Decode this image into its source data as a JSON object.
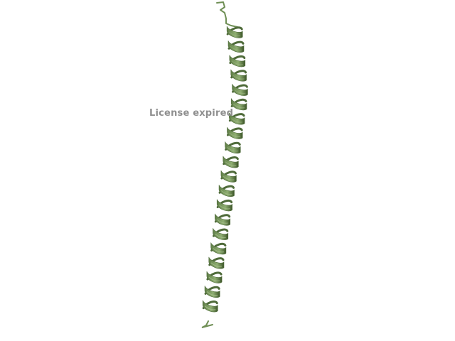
{
  "viewer": {
    "overlay_text": "License expired",
    "subject": "alpha-helix-ribbon",
    "colors": {
      "background": "#ffffff",
      "ribbon_dark": "#4f6b3a",
      "ribbon_mid": "#6f8f55",
      "ribbon_light": "#a9c28e",
      "overlay_text": "#8f8f8f"
    }
  }
}
